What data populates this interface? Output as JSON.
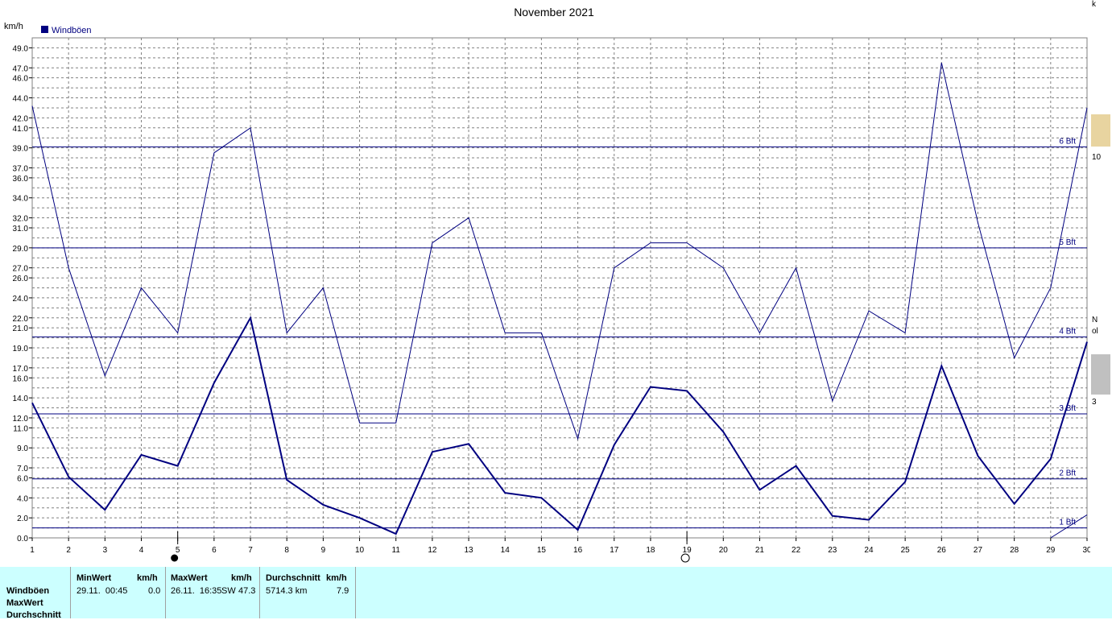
{
  "chart_data": {
    "type": "line",
    "title": "November 2021",
    "ylabel": "km/h",
    "ylim": [
      0,
      50
    ],
    "x": [
      1,
      2,
      3,
      4,
      5,
      6,
      7,
      8,
      9,
      10,
      11,
      12,
      13,
      14,
      15,
      16,
      17,
      18,
      19,
      20,
      21,
      22,
      23,
      24,
      25,
      26,
      27,
      28,
      29,
      30
    ],
    "yticks": [
      "0.0",
      "2.0",
      "4.0",
      "6.0",
      "7.0",
      "9.0",
      "11.0",
      "12.0",
      "14.0",
      "16.0",
      "17.0",
      "19.0",
      "21.0",
      "22.0",
      "24.0",
      "26.0",
      "27.0",
      "29.0",
      "31.0",
      "32.0",
      "34.0",
      "36.0",
      "37.0",
      "39.0",
      "41.0",
      "42.0",
      "44.0",
      "46.0",
      "47.0",
      "49.0"
    ],
    "legend": "Windböen",
    "grid": true,
    "series": [
      {
        "name": "MaxWert",
        "values": [
          43.2,
          27.0,
          16.2,
          25.0,
          20.5,
          38.5,
          41.0,
          20.5,
          25.0,
          11.5,
          11.5,
          29.5,
          32.0,
          20.5,
          20.5,
          9.9,
          27.0,
          29.5,
          29.5,
          27.0,
          20.5,
          27.0,
          13.7,
          22.7,
          20.5,
          47.5,
          31.5,
          18.0,
          25.0,
          43.0
        ]
      },
      {
        "name": "Windböen",
        "values": [
          13.5,
          6.1,
          2.8,
          8.3,
          7.2,
          15.5,
          22.0,
          5.8,
          3.3,
          2.0,
          0.4,
          8.6,
          9.4,
          4.5,
          4.0,
          0.8,
          9.3,
          15.1,
          14.7,
          10.6,
          4.8,
          7.2,
          2.2,
          1.8,
          5.6,
          17.2,
          8.2,
          3.4,
          7.9,
          19.6
        ]
      }
    ],
    "beaufort": [
      {
        "label": "1 Bft",
        "value": 1.0
      },
      {
        "label": "2 Bft",
        "value": 5.9
      },
      {
        "label": "3 Bft",
        "value": 12.4
      },
      {
        "label": "4 Bft",
        "value": 20.1
      },
      {
        "label": "5 Bft",
        "value": 29.0
      },
      {
        "label": "6 Bft",
        "value": 39.1
      }
    ],
    "moon": [
      {
        "day": 5,
        "phase": "new-moon"
      },
      {
        "day": 19,
        "phase": "full-moon"
      }
    ]
  },
  "stats": {
    "rows": [
      "Windböen",
      "MaxWert",
      "Durchschnitt"
    ],
    "min": {
      "header": "MinWert",
      "unit": "km/h",
      "time": "29.11.  00:45",
      "value": "0.0"
    },
    "max": {
      "header": "MaxWert",
      "unit": "km/h",
      "time": "26.11.  16:35",
      "dir": "SW",
      "value": "47.3"
    },
    "avg": {
      "header": "Durchschnitt",
      "unit": "km/h",
      "distance": "5714.3 km",
      "value": "7.9"
    }
  },
  "right_strip": [
    "k",
    "10",
    "N",
    "ol",
    "3"
  ],
  "colors": {
    "series": "#000080",
    "bft": "#000080",
    "grid": "#808080",
    "table_bg": "#ccffff"
  }
}
